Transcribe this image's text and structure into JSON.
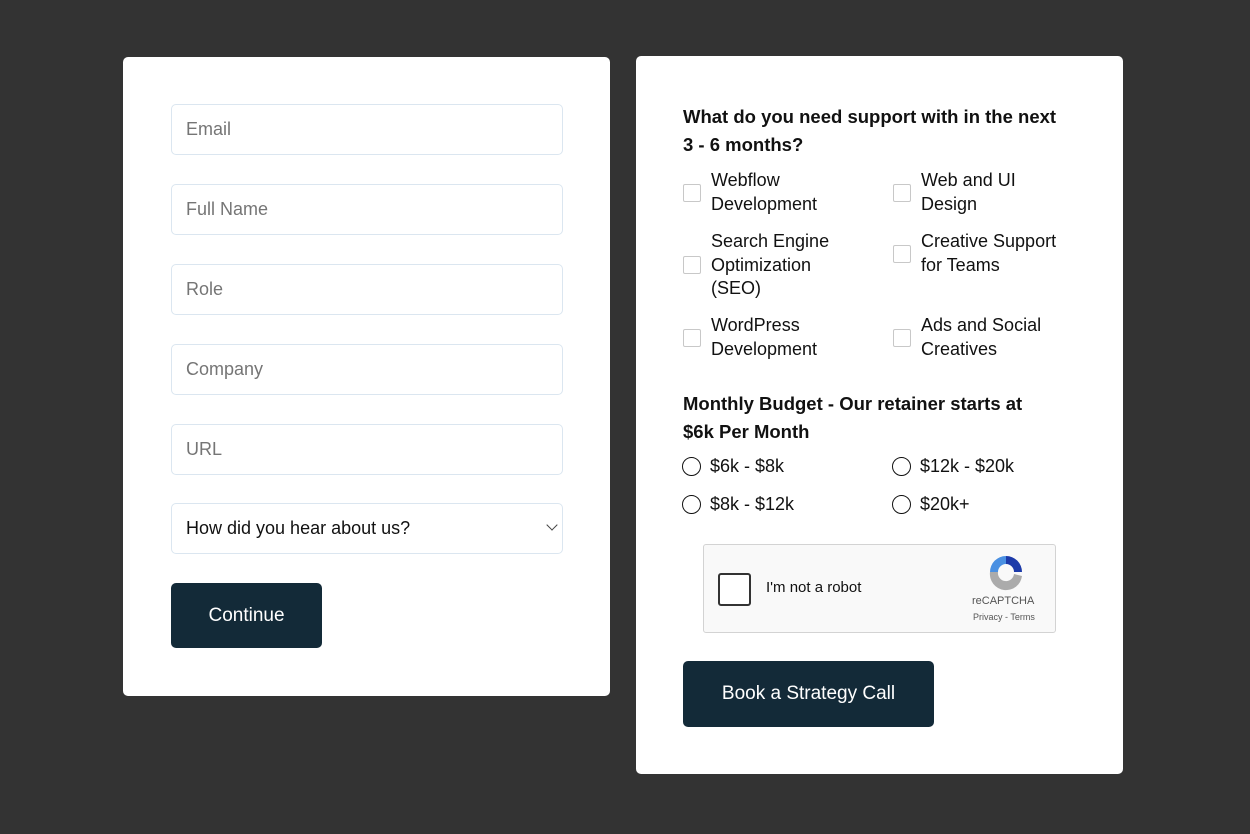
{
  "left_form": {
    "fields": [
      {
        "placeholder": "Email"
      },
      {
        "placeholder": "Full Name"
      },
      {
        "placeholder": "Role"
      },
      {
        "placeholder": "Company"
      },
      {
        "placeholder": "URL"
      }
    ],
    "referral_select": {
      "value": "How did you hear about us?"
    },
    "continue_label": "Continue"
  },
  "right_form": {
    "support_heading_line1": "What do you need support with in the next",
    "support_heading_line2": "3 - 6 months?",
    "support_options": [
      {
        "line1": "Webflow",
        "line2": "Development",
        "checked": false
      },
      {
        "line1": "Web and UI",
        "line2": "Design",
        "checked": false
      },
      {
        "line1": "Search Engine",
        "line2": "Optimization",
        "line3": "(SEO)",
        "checked": false
      },
      {
        "line1": "Creative Support",
        "line2": "for Teams",
        "checked": false
      },
      {
        "line1": "WordPress",
        "line2": "Development",
        "checked": false
      },
      {
        "line1": "Ads and Social",
        "line2": "Creatives",
        "checked": false
      }
    ],
    "budget_heading_line1": "Monthly Budget - Our retainer starts at",
    "budget_heading_line2": "$6k Per Month",
    "budget_options": [
      {
        "label": "$6k - $8k",
        "selected": false
      },
      {
        "label": "$12k - $20k",
        "selected": false
      },
      {
        "label": "$8k - $12k",
        "selected": false
      },
      {
        "label": "$20k+",
        "selected": false
      }
    ],
    "recaptcha": {
      "label": "I'm not a robot",
      "brand": "reCAPTCHA",
      "privacy": "Privacy",
      "sep": " - ",
      "terms": "Terms"
    },
    "submit_label": "Book a Strategy Call"
  },
  "colors": {
    "background": "#333333",
    "button": "#132a38",
    "input_border": "#dbe6f0"
  }
}
